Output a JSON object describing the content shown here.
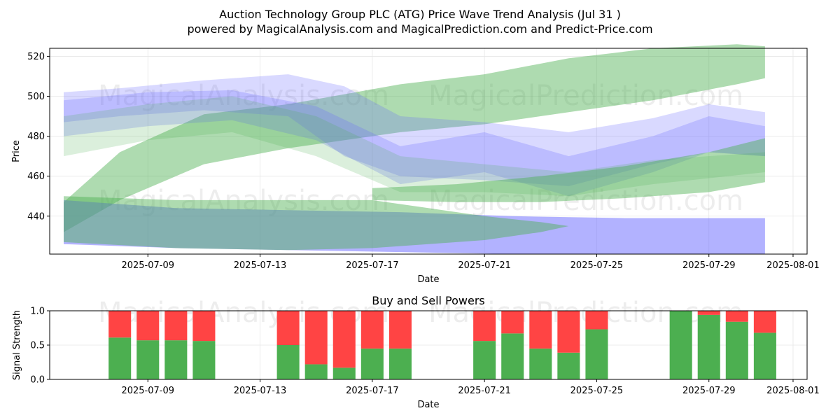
{
  "title_line1": "Auction Technology Group PLC (ATG) Price Wave Trend Analysis (Jul 31 )",
  "title_line2": "powered by MagicalAnalysis.com and MagicalPrediction.com and Predict-Price.com",
  "watermarks": [
    "MagicalAnalysis.com",
    "MagicalPrediction.com"
  ],
  "colors": {
    "green": "#4caf50",
    "blue": "#6666ff",
    "sell_red": "#ff4444",
    "buy_green": "#4caf50",
    "overlap": "#5f8fa0"
  },
  "chart_data": [
    {
      "type": "area",
      "title": "",
      "xlabel": "Date",
      "ylabel": "Price",
      "x_ticks": [
        "2025-07-09",
        "2025-07-13",
        "2025-07-17",
        "2025-07-21",
        "2025-07-25",
        "2025-07-29",
        "2025-08-01"
      ],
      "y_ticks": [
        440,
        460,
        480,
        500,
        520
      ],
      "xlim": [
        "2025-07-05T12:00",
        "2025-08-01T12:00"
      ],
      "ylim": [
        421,
        524
      ],
      "grid": true,
      "series": [
        {
          "color": "green",
          "opacity": 0.45,
          "upper": [
            [
              "2025-07-06",
              447
            ],
            [
              "2025-07-08",
              472
            ],
            [
              "2025-07-11",
              491
            ],
            [
              "2025-07-14",
              496
            ],
            [
              "2025-07-18",
              506
            ],
            [
              "2025-07-21",
              511
            ],
            [
              "2025-07-24",
              519
            ],
            [
              "2025-07-27",
              524
            ],
            [
              "2025-07-30",
              526
            ],
            [
              "2025-07-31",
              525
            ]
          ],
          "lower": [
            [
              "2025-07-06",
              432
            ],
            [
              "2025-07-08",
              448
            ],
            [
              "2025-07-11",
              466
            ],
            [
              "2025-07-14",
              474
            ],
            [
              "2025-07-18",
              482
            ],
            [
              "2025-07-21",
              486
            ],
            [
              "2025-07-24",
              492
            ],
            [
              "2025-07-27",
              498
            ],
            [
              "2025-07-30",
              506
            ],
            [
              "2025-07-31",
              509
            ]
          ]
        },
        {
          "color": "blue",
          "opacity": 0.5,
          "upper": [
            [
              "2025-07-06",
              448
            ],
            [
              "2025-07-10",
              444
            ],
            [
              "2025-07-14",
              443
            ],
            [
              "2025-07-18",
              442
            ],
            [
              "2025-07-22",
              440
            ],
            [
              "2025-07-26",
              439
            ],
            [
              "2025-07-31",
              439
            ]
          ],
          "lower": [
            [
              "2025-07-06",
              426
            ],
            [
              "2025-07-10",
              424
            ],
            [
              "2025-07-14",
              423
            ],
            [
              "2025-07-18",
              422
            ],
            [
              "2025-07-22",
              421
            ],
            [
              "2025-07-26",
              421
            ],
            [
              "2025-07-31",
              421
            ]
          ]
        },
        {
          "color": "green",
          "opacity": 0.45,
          "upper": [
            [
              "2025-07-06",
              450
            ],
            [
              "2025-07-10",
              448
            ],
            [
              "2025-07-14",
              448
            ],
            [
              "2025-07-17",
              448
            ],
            [
              "2025-07-19",
              444
            ],
            [
              "2025-07-21",
              440
            ],
            [
              "2025-07-23",
              437
            ],
            [
              "2025-07-24",
              435
            ]
          ],
          "lower": [
            [
              "2025-07-06",
              427
            ],
            [
              "2025-07-10",
              424
            ],
            [
              "2025-07-14",
              423
            ],
            [
              "2025-07-17",
              424
            ],
            [
              "2025-07-19",
              426
            ],
            [
              "2025-07-21",
              428
            ],
            [
              "2025-07-23",
              432
            ],
            [
              "2025-07-24",
              435
            ]
          ]
        },
        {
          "color": "blue",
          "opacity": 0.25,
          "upper": [
            [
              "2025-07-06",
              502
            ],
            [
              "2025-07-08",
              504
            ],
            [
              "2025-07-11",
              508
            ],
            [
              "2025-07-14",
              511
            ],
            [
              "2025-07-16",
              505
            ],
            [
              "2025-07-18",
              490
            ],
            [
              "2025-07-21",
              487
            ],
            [
              "2025-07-24",
              482
            ],
            [
              "2025-07-27",
              489
            ],
            [
              "2025-07-29",
              496
            ],
            [
              "2025-07-31",
              492
            ]
          ],
          "lower": [
            [
              "2025-07-06",
              487
            ],
            [
              "2025-07-08",
              490
            ],
            [
              "2025-07-11",
              493
            ],
            [
              "2025-07-14",
              490
            ],
            [
              "2025-07-16",
              470
            ],
            [
              "2025-07-18",
              460
            ],
            [
              "2025-07-21",
              458
            ],
            [
              "2025-07-24",
              455
            ],
            [
              "2025-07-27",
              466
            ],
            [
              "2025-07-29",
              472
            ],
            [
              "2025-07-31",
              470
            ]
          ]
        },
        {
          "color": "blue",
          "opacity": 0.25,
          "upper": [
            [
              "2025-07-06",
              498
            ],
            [
              "2025-07-09",
              502
            ],
            [
              "2025-07-12",
              503
            ],
            [
              "2025-07-15",
              495
            ],
            [
              "2025-07-18",
              475
            ],
            [
              "2025-07-21",
              482
            ],
            [
              "2025-07-24",
              470
            ],
            [
              "2025-07-27",
              480
            ],
            [
              "2025-07-29",
              490
            ],
            [
              "2025-07-31",
              485
            ]
          ],
          "lower": [
            [
              "2025-07-06",
              480
            ],
            [
              "2025-07-09",
              485
            ],
            [
              "2025-07-12",
              488
            ],
            [
              "2025-07-15",
              478
            ],
            [
              "2025-07-18",
              456
            ],
            [
              "2025-07-21",
              462
            ],
            [
              "2025-07-24",
              450
            ],
            [
              "2025-07-27",
              462
            ],
            [
              "2025-07-29",
              472
            ],
            [
              "2025-07-31",
              470
            ]
          ]
        },
        {
          "color": "green",
          "opacity": 0.2,
          "upper": [
            [
              "2025-07-06",
              490
            ],
            [
              "2025-07-09",
              496
            ],
            [
              "2025-07-12",
              500
            ],
            [
              "2025-07-15",
              490
            ],
            [
              "2025-07-18",
              470
            ],
            [
              "2025-07-21",
              466
            ],
            [
              "2025-07-24",
              462
            ],
            [
              "2025-07-27",
              468
            ],
            [
              "2025-07-31",
              472
            ]
          ],
          "lower": [
            [
              "2025-07-06",
              470
            ],
            [
              "2025-07-09",
              478
            ],
            [
              "2025-07-12",
              482
            ],
            [
              "2025-07-15",
              470
            ],
            [
              "2025-07-18",
              452
            ],
            [
              "2025-07-21",
              452
            ],
            [
              "2025-07-24",
              450
            ],
            [
              "2025-07-27",
              456
            ],
            [
              "2025-07-31",
              462
            ]
          ]
        },
        {
          "color": "green",
          "opacity": 0.45,
          "upper": [
            [
              "2025-07-17",
              454
            ],
            [
              "2025-07-20",
              456
            ],
            [
              "2025-07-23",
              460
            ],
            [
              "2025-07-26",
              465
            ],
            [
              "2025-07-29",
              472
            ],
            [
              "2025-07-31",
              479
            ]
          ],
          "lower": [
            [
              "2025-07-17",
              448
            ],
            [
              "2025-07-20",
              447
            ],
            [
              "2025-07-23",
              447
            ],
            [
              "2025-07-26",
              449
            ],
            [
              "2025-07-29",
              452
            ],
            [
              "2025-07-31",
              457
            ]
          ]
        }
      ]
    },
    {
      "type": "bar",
      "title": "Buy and Sell Powers",
      "xlabel": "Date",
      "ylabel": "Signal Strength",
      "x_ticks": [
        "2025-07-09",
        "2025-07-13",
        "2025-07-17",
        "2025-07-21",
        "2025-07-25",
        "2025-07-29",
        "2025-08-01"
      ],
      "y_ticks": [
        "0.0",
        "0.5",
        "1.0"
      ],
      "ylim": [
        0,
        1
      ],
      "bars": [
        {
          "date": "2025-07-08",
          "buy": 0.61,
          "sell": 0.39
        },
        {
          "date": "2025-07-09",
          "buy": 0.57,
          "sell": 0.43
        },
        {
          "date": "2025-07-10",
          "buy": 0.57,
          "sell": 0.43
        },
        {
          "date": "2025-07-11",
          "buy": 0.56,
          "sell": 0.44
        },
        {
          "date": "2025-07-14",
          "buy": 0.5,
          "sell": 0.5
        },
        {
          "date": "2025-07-15",
          "buy": 0.22,
          "sell": 0.78
        },
        {
          "date": "2025-07-16",
          "buy": 0.17,
          "sell": 0.83
        },
        {
          "date": "2025-07-17",
          "buy": 0.45,
          "sell": 0.55
        },
        {
          "date": "2025-07-18",
          "buy": 0.45,
          "sell": 0.55
        },
        {
          "date": "2025-07-21",
          "buy": 0.56,
          "sell": 0.44
        },
        {
          "date": "2025-07-22",
          "buy": 0.67,
          "sell": 0.33
        },
        {
          "date": "2025-07-23",
          "buy": 0.45,
          "sell": 0.55
        },
        {
          "date": "2025-07-24",
          "buy": 0.39,
          "sell": 0.61
        },
        {
          "date": "2025-07-25",
          "buy": 0.73,
          "sell": 0.27
        },
        {
          "date": "2025-07-28",
          "buy": 1.0,
          "sell": 0.0
        },
        {
          "date": "2025-07-29",
          "buy": 0.94,
          "sell": 0.06
        },
        {
          "date": "2025-07-30",
          "buy": 0.84,
          "sell": 0.16
        },
        {
          "date": "2025-07-31",
          "buy": 0.68,
          "sell": 0.32
        }
      ]
    }
  ]
}
